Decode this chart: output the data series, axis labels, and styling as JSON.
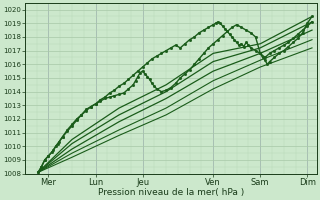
{
  "xlabel": "Pression niveau de la mer( hPa )",
  "ylim": [
    1008,
    1020.5
  ],
  "xlim": [
    0,
    6.2
  ],
  "xtick_positions": [
    0.5,
    1.5,
    2.5,
    4.0,
    5.0,
    6.0
  ],
  "xtick_labels": [
    "Mer",
    "Lun",
    "Jeu",
    "Ven",
    "Sam",
    "Dim"
  ],
  "ytick_positions": [
    1008,
    1009,
    1010,
    1011,
    1012,
    1013,
    1014,
    1015,
    1016,
    1017,
    1018,
    1019,
    1020
  ],
  "background_color": "#cce8cc",
  "grid_major_color": "#a8c8a8",
  "grid_minor_color": "#b8d8b8",
  "line_color": "#1a5c1a",
  "vline_color": "#a0a0d0",
  "series": [
    {
      "x": [
        0.28,
        0.35,
        0.42,
        0.5,
        0.58,
        0.65,
        0.72,
        0.8,
        0.9,
        1.0,
        1.1,
        1.2,
        1.3,
        1.4,
        1.5,
        1.6,
        1.7,
        1.8,
        1.9,
        2.0,
        2.1,
        2.2,
        2.3,
        2.35,
        2.4,
        2.45,
        2.5,
        2.55,
        2.6,
        2.65,
        2.7,
        2.75,
        2.8,
        2.9,
        3.0,
        3.1,
        3.2,
        3.3,
        3.4,
        3.5,
        3.6,
        3.7,
        3.8,
        3.9,
        4.0,
        4.1,
        4.2,
        4.3,
        4.4,
        4.5,
        4.6,
        4.7,
        4.8,
        4.9,
        5.0,
        5.1,
        5.2,
        5.3,
        5.4,
        5.5,
        5.6,
        5.7,
        5.8,
        5.9,
        6.0,
        6.1
      ],
      "y": [
        1008.1,
        1008.5,
        1009.0,
        1009.3,
        1009.6,
        1010.0,
        1010.3,
        1010.7,
        1011.2,
        1011.6,
        1012.0,
        1012.3,
        1012.7,
        1012.9,
        1013.1,
        1013.3,
        1013.5,
        1013.6,
        1013.7,
        1013.8,
        1013.9,
        1014.2,
        1014.5,
        1014.8,
        1015.1,
        1015.4,
        1015.5,
        1015.3,
        1015.1,
        1014.9,
        1014.6,
        1014.4,
        1014.2,
        1014.0,
        1014.1,
        1014.3,
        1014.6,
        1015.0,
        1015.3,
        1015.6,
        1016.0,
        1016.4,
        1016.8,
        1017.2,
        1017.5,
        1017.8,
        1018.1,
        1018.4,
        1018.7,
        1018.9,
        1018.7,
        1018.5,
        1018.3,
        1018.0,
        1016.8,
        1016.5,
        1016.8,
        1017.0,
        1017.2,
        1017.4,
        1017.6,
        1017.9,
        1018.2,
        1018.5,
        1018.8,
        1019.1
      ],
      "style": "dotted_marker",
      "lw": 1.0
    },
    {
      "x": [
        0.28,
        0.35,
        0.42,
        0.5,
        0.6,
        0.7,
        0.8,
        0.9,
        1.0,
        1.1,
        1.2,
        1.3,
        1.4,
        1.5,
        1.6,
        1.7,
        1.8,
        1.9,
        2.0,
        2.1,
        2.2,
        2.3,
        2.4,
        2.5,
        2.6,
        2.7,
        2.8,
        2.9,
        3.0,
        3.1,
        3.2,
        3.3,
        3.4,
        3.5,
        3.6,
        3.7,
        3.8,
        3.9,
        4.0,
        4.05,
        4.1,
        4.15,
        4.2,
        4.25,
        4.3,
        4.35,
        4.4,
        4.45,
        4.5,
        4.55,
        4.6,
        4.65,
        4.7,
        4.75,
        4.8,
        4.9,
        5.0,
        5.05,
        5.1,
        5.15,
        5.2,
        5.3,
        5.4,
        5.5,
        5.6,
        5.7,
        5.8,
        5.9,
        6.0,
        6.1
      ],
      "y": [
        1008.1,
        1008.5,
        1009.0,
        1009.3,
        1009.7,
        1010.2,
        1010.7,
        1011.1,
        1011.5,
        1011.9,
        1012.3,
        1012.6,
        1012.9,
        1013.1,
        1013.4,
        1013.6,
        1013.9,
        1014.1,
        1014.4,
        1014.6,
        1014.9,
        1015.2,
        1015.5,
        1015.8,
        1016.1,
        1016.4,
        1016.6,
        1016.8,
        1017.0,
        1017.2,
        1017.4,
        1017.2,
        1017.5,
        1017.8,
        1018.0,
        1018.3,
        1018.5,
        1018.7,
        1018.9,
        1019.0,
        1019.1,
        1019.0,
        1018.8,
        1018.6,
        1018.4,
        1018.2,
        1018.0,
        1017.8,
        1017.6,
        1017.4,
        1017.5,
        1017.3,
        1017.6,
        1017.4,
        1017.2,
        1017.0,
        1016.8,
        1016.5,
        1016.3,
        1016.0,
        1016.2,
        1016.5,
        1016.8,
        1017.0,
        1017.3,
        1017.6,
        1017.9,
        1018.3,
        1019.0,
        1019.5
      ],
      "style": "dotted_marker",
      "lw": 1.0
    },
    {
      "x": [
        0.28,
        1.0,
        2.0,
        3.0,
        4.0,
        5.0,
        6.1
      ],
      "y": [
        1008.1,
        1010.5,
        1012.8,
        1014.5,
        1016.8,
        1017.5,
        1019.5
      ],
      "style": "line",
      "lw": 0.9
    },
    {
      "x": [
        0.28,
        1.0,
        2.0,
        3.0,
        4.0,
        5.0,
        6.1
      ],
      "y": [
        1008.1,
        1010.2,
        1012.3,
        1014.0,
        1016.2,
        1017.2,
        1019.1
      ],
      "style": "line",
      "lw": 0.9
    },
    {
      "x": [
        0.28,
        1.0,
        2.0,
        3.0,
        4.0,
        5.0,
        6.1
      ],
      "y": [
        1008.1,
        1009.8,
        1011.8,
        1013.5,
        1015.5,
        1016.8,
        1018.5
      ],
      "style": "line",
      "lw": 0.9
    },
    {
      "x": [
        0.28,
        1.0,
        2.0,
        3.0,
        4.0,
        5.0,
        6.1
      ],
      "y": [
        1008.1,
        1009.5,
        1011.2,
        1012.8,
        1014.8,
        1016.3,
        1017.8
      ],
      "style": "line",
      "lw": 0.8
    },
    {
      "x": [
        0.28,
        1.0,
        2.0,
        3.0,
        4.0,
        5.0,
        6.1
      ],
      "y": [
        1008.1,
        1009.2,
        1010.8,
        1012.3,
        1014.2,
        1015.8,
        1017.2
      ],
      "style": "line",
      "lw": 0.8
    }
  ],
  "vlines": [
    0.5,
    1.5,
    2.5,
    4.0,
    5.0,
    6.0
  ]
}
